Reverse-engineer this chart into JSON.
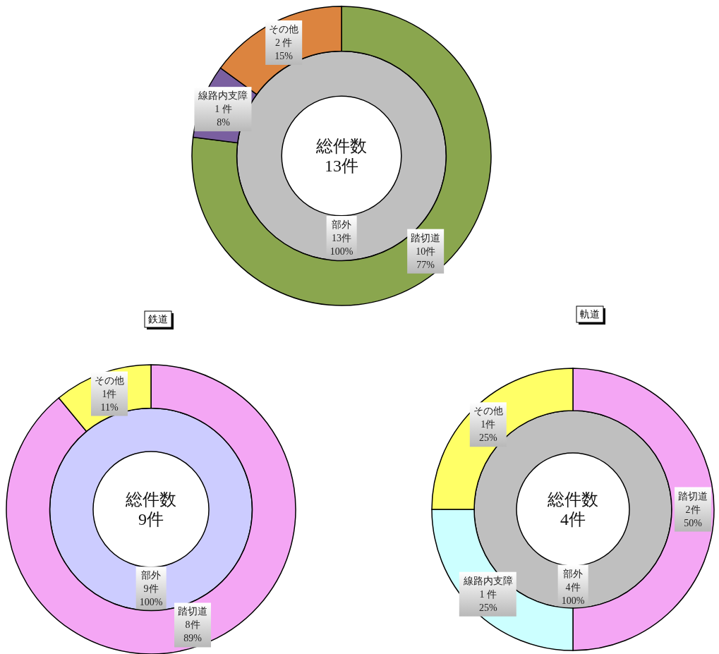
{
  "chart_data": [
    {
      "type": "donut",
      "annotations": [
        "総件数",
        "13件"
      ],
      "categories": [
        "部外"
      ],
      "values": [
        100
      ],
      "colors": [
        "#bfbfbf"
      ],
      "value_labels": [
        "13件\n100%"
      ]
    },
    {
      "type": "donut",
      "categories": [
        "踏切道",
        "線路内支障",
        "その他"
      ],
      "values": [
        77,
        8,
        15
      ],
      "colors": [
        "#8aa64e",
        "#7a5fa0",
        "#dc843f"
      ],
      "value_labels": [
        "10件\n77%",
        "1 件\n8%",
        "2 件\n15%"
      ]
    },
    {
      "type": "donut",
      "annotations": [
        "総件数",
        "9件"
      ],
      "categories": [
        "部外"
      ],
      "values": [
        100
      ],
      "colors": [
        "#ccccff"
      ],
      "value_labels": [
        "9件\n100%"
      ]
    },
    {
      "type": "donut",
      "title": "鉄道",
      "categories": [
        "踏切道",
        "その他"
      ],
      "values": [
        89,
        11
      ],
      "colors": [
        "#f4a6f4",
        "#ffff66"
      ],
      "value_labels": [
        "8件\n89%",
        "1件\n11%"
      ]
    },
    {
      "type": "donut",
      "annotations": [
        "総件数",
        "4件"
      ],
      "categories": [
        "部外"
      ],
      "values": [
        100
      ],
      "colors": [
        "#bfbfbf"
      ],
      "value_labels": [
        "4件\n100%"
      ]
    },
    {
      "type": "donut",
      "title": "軌道",
      "categories": [
        "踏切道",
        "線路内支障",
        "その他"
      ],
      "values": [
        50,
        25,
        25
      ],
      "colors": [
        "#f4a6f4",
        "#ccffff",
        "#ffff66"
      ],
      "value_labels": [
        "2件\n50%",
        "1 件\n25%",
        "1件\n25%"
      ]
    }
  ]
}
